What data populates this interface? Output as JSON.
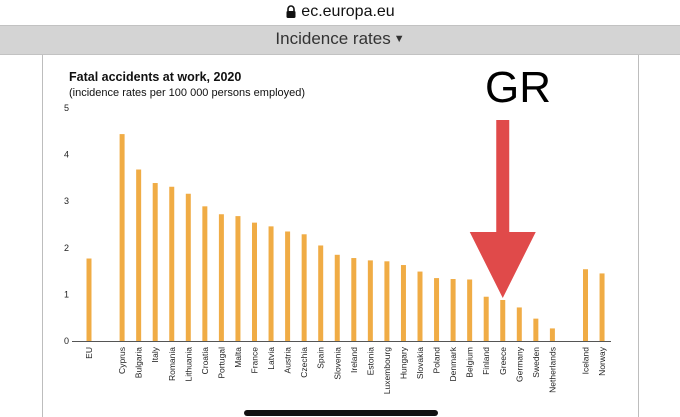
{
  "browser": {
    "url": "ec.europa.eu",
    "lock_icon": "lock-icon"
  },
  "toolbar": {
    "dropdown_label": "Incidence rates",
    "dropdown_icon": "caret-down-icon"
  },
  "annotation": {
    "text": "GR",
    "arrow_color": "#e04a4a",
    "points_to": "Greece"
  },
  "chart_data": {
    "type": "bar",
    "title": "Fatal accidents at work, 2020",
    "subtitle": "(incidence rates per 100 000 persons employed)",
    "bar_color": "#f0ac45",
    "ylim": [
      0,
      5
    ],
    "yticks": [
      "0",
      "1",
      "2",
      "3",
      "4",
      "5"
    ],
    "grid": false,
    "categories": [
      "EU",
      "Cyprus",
      "Bulgaria",
      "Italy",
      "Romania",
      "Lithuania",
      "Croatia",
      "Portugal",
      "Malta",
      "France",
      "Latvia",
      "Austria",
      "Czechia",
      "Spain",
      "Slovenia",
      "Ireland",
      "Estonia",
      "Luxembourg",
      "Hungary",
      "Slovakia",
      "Poland",
      "Denmark",
      "Belgium",
      "Finland",
      "Greece",
      "Germany",
      "Sweden",
      "Netherlands",
      "Iceland",
      "Norway"
    ],
    "values": [
      1.77,
      4.44,
      3.68,
      3.39,
      3.31,
      3.16,
      2.89,
      2.72,
      2.68,
      2.54,
      2.46,
      2.35,
      2.29,
      2.05,
      1.85,
      1.78,
      1.73,
      1.71,
      1.63,
      1.49,
      1.35,
      1.33,
      1.32,
      0.95,
      0.88,
      0.72,
      0.48,
      0.27,
      1.54,
      1.45
    ],
    "slots": [
      0,
      2,
      3,
      4,
      5,
      6,
      7,
      8,
      9,
      10,
      11,
      12,
      13,
      14,
      15,
      16,
      17,
      18,
      19,
      20,
      21,
      22,
      23,
      24,
      25,
      26,
      27,
      28,
      30,
      31
    ]
  }
}
